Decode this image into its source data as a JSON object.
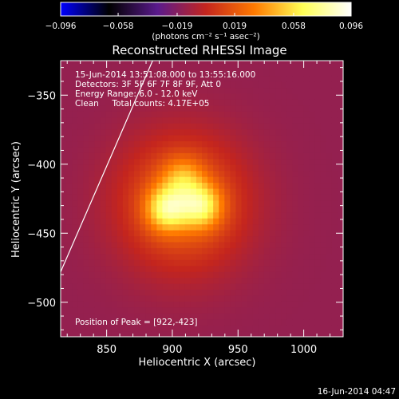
{
  "chart_data": {
    "type": "heatmap",
    "title": "Reconstructed RHESSI Image",
    "xlabel": "Heliocentric X (arcsec)",
    "ylabel": "Heliocentric Y (arcsec)",
    "xlim": [
      815,
      1030
    ],
    "ylim": [
      -525,
      -325
    ],
    "x_ticks": [
      850,
      900,
      950,
      1000
    ],
    "y_ticks": [
      -350,
      -400,
      -450,
      -500
    ],
    "x_tick_labels": [
      "850",
      "900",
      "950",
      "1000"
    ],
    "y_tick_labels": [
      "−350",
      "−400",
      "−450",
      "−500"
    ],
    "colorbar": {
      "range": [
        -0.096,
        0.096
      ],
      "ticks": [
        -0.096,
        -0.058,
        -0.019,
        0.019,
        0.058,
        0.096
      ],
      "tick_labels": [
        "−0.096",
        "−0.058",
        "−0.019",
        "0.019",
        "0.058",
        "0.096"
      ],
      "label": "(photons cm⁻² s⁻¹ asec⁻²)",
      "colormap": [
        "#0000ff",
        "#000000",
        "#5a1a8c",
        "#c4251e",
        "#ff7a00",
        "#ffff55",
        "#ffffff"
      ]
    },
    "annotations": [
      "15-Jun-2014 13:51:08.000 to 13:55:16.000",
      "Detectors: 3F 5F 6F 7F 8F 9F, Att 0",
      "Energy Range: 6.0 - 12.0 keV",
      "Clean     Total counts: 4.17E+05"
    ],
    "peak_label": "Position of Peak = [922,-423]",
    "peak": [
      922,
      -423
    ],
    "sources": [
      {
        "x": 896,
        "y": -432,
        "sigma": 11,
        "amplitude": 0.055
      },
      {
        "x": 922,
        "y": -430,
        "sigma": 11,
        "amplitude": 0.052
      },
      {
        "x": 908,
        "y": -410,
        "sigma": 11,
        "amplitude": 0.03
      },
      {
        "x": 908,
        "y": -428,
        "sigma": 34,
        "amplitude": 0.04
      }
    ],
    "background_value": -0.0145,
    "limb_line": [
      [
        815,
        -478
      ],
      [
        885,
        -325
      ]
    ],
    "timestamp": "16-Jun-2014 04:47"
  }
}
